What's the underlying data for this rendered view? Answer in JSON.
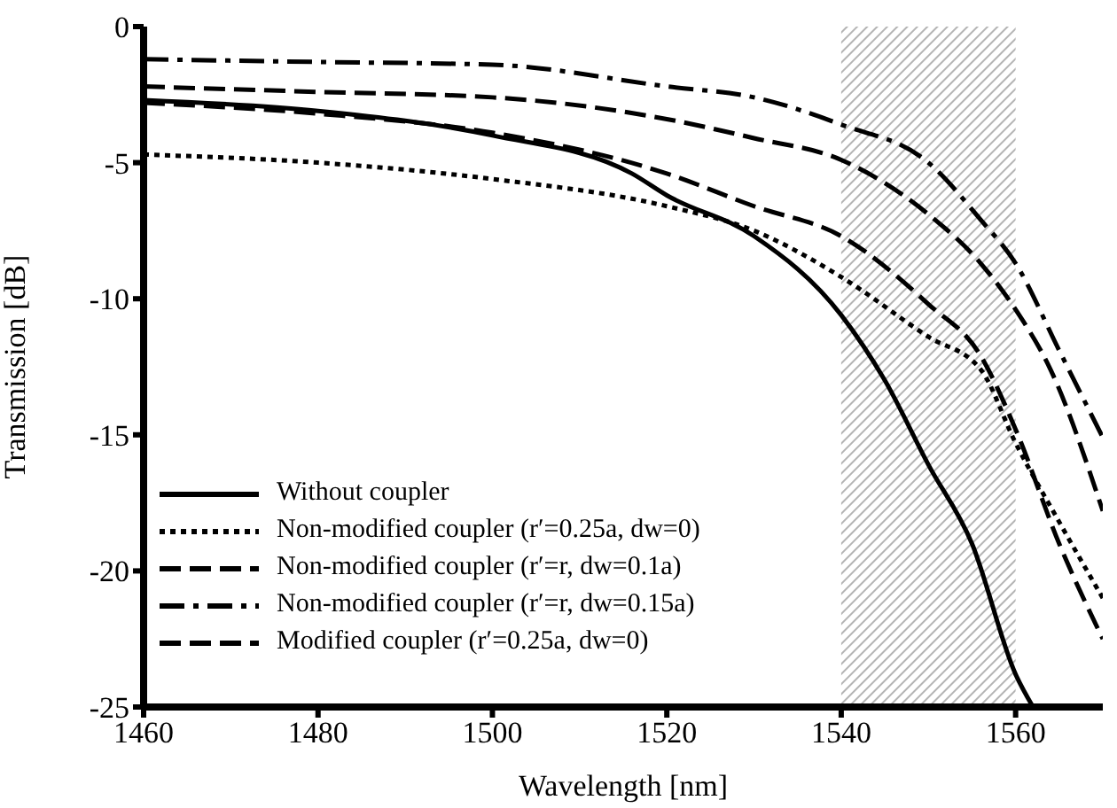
{
  "chart_data": {
    "type": "line",
    "xlabel": "Wavelength [nm]",
    "ylabel": "Transmission [dB]",
    "xlim": [
      1460,
      1570
    ],
    "xticks": [
      1460,
      1480,
      1500,
      1520,
      1540,
      1560
    ],
    "ylim": [
      -25,
      0
    ],
    "yticks": [
      -25,
      -20,
      -15,
      -10,
      -5,
      0
    ],
    "grid": false,
    "legend": "bottom left",
    "marker": "none",
    "bands": [
      {
        "axis": "x",
        "from": 1540,
        "to": 1560,
        "color": "#b4b4b4"
      }
    ],
    "series": [
      {
        "name": "Without coupler",
        "color": "#000000",
        "line_style": "solid",
        "x": [
          1460,
          1480,
          1500,
          1516,
          1520,
          1530,
          1540,
          1545,
          1550,
          1555,
          1560,
          1562
        ],
        "values": [
          -2.7,
          -3.1,
          -4.0,
          -5.4,
          -6.2,
          -7.7,
          -10.6,
          -13.0,
          -16.1,
          -19.0,
          -23.8,
          -25
        ]
      },
      {
        "name": "Non-modified coupler (r′=0.25a, dw=0)",
        "color": "#000000",
        "line_style": "dotted",
        "x": [
          1460,
          1480,
          1500,
          1520,
          1530,
          1540,
          1550,
          1556,
          1560,
          1565,
          1570
        ],
        "values": [
          -4.7,
          -5.0,
          -5.6,
          -6.6,
          -7.5,
          -9.2,
          -11.4,
          -12.6,
          -15.3,
          -18.2,
          -21
        ]
      },
      {
        "name": "Non-modified coupler (r′=r, dw=0.1a)",
        "color": "#000000",
        "line_style": "dashed",
        "x": [
          1460,
          1480,
          1500,
          1520,
          1530,
          1540,
          1550,
          1556,
          1560,
          1564,
          1570
        ],
        "values": [
          -2.2,
          -2.4,
          -2.6,
          -3.4,
          -4.1,
          -4.9,
          -6.9,
          -8.7,
          -10.4,
          -12.6,
          -17.8
        ]
      },
      {
        "name": "Non-modified coupler (r′=r, dw=0.15a)",
        "color": "#000000",
        "line_style": "dashdot",
        "x": [
          1460,
          1480,
          1500,
          1520,
          1530,
          1540,
          1550,
          1556,
          1560,
          1565,
          1570
        ],
        "values": [
          -1.2,
          -1.3,
          -1.4,
          -2.2,
          -2.6,
          -3.6,
          -5.0,
          -7.1,
          -8.7,
          -11.9,
          -15.1
        ]
      },
      {
        "name": "Modified coupler (r′=0.25a, dw=0)",
        "color": "#000000",
        "line_style": "dashed",
        "x": [
          1460,
          1480,
          1500,
          1520,
          1530,
          1540,
          1550,
          1556,
          1560,
          1565,
          1570
        ],
        "values": [
          -2.8,
          -3.2,
          -3.9,
          -5.4,
          -6.6,
          -7.7,
          -10.2,
          -12.1,
          -14.8,
          -19,
          -22.5
        ]
      }
    ]
  }
}
